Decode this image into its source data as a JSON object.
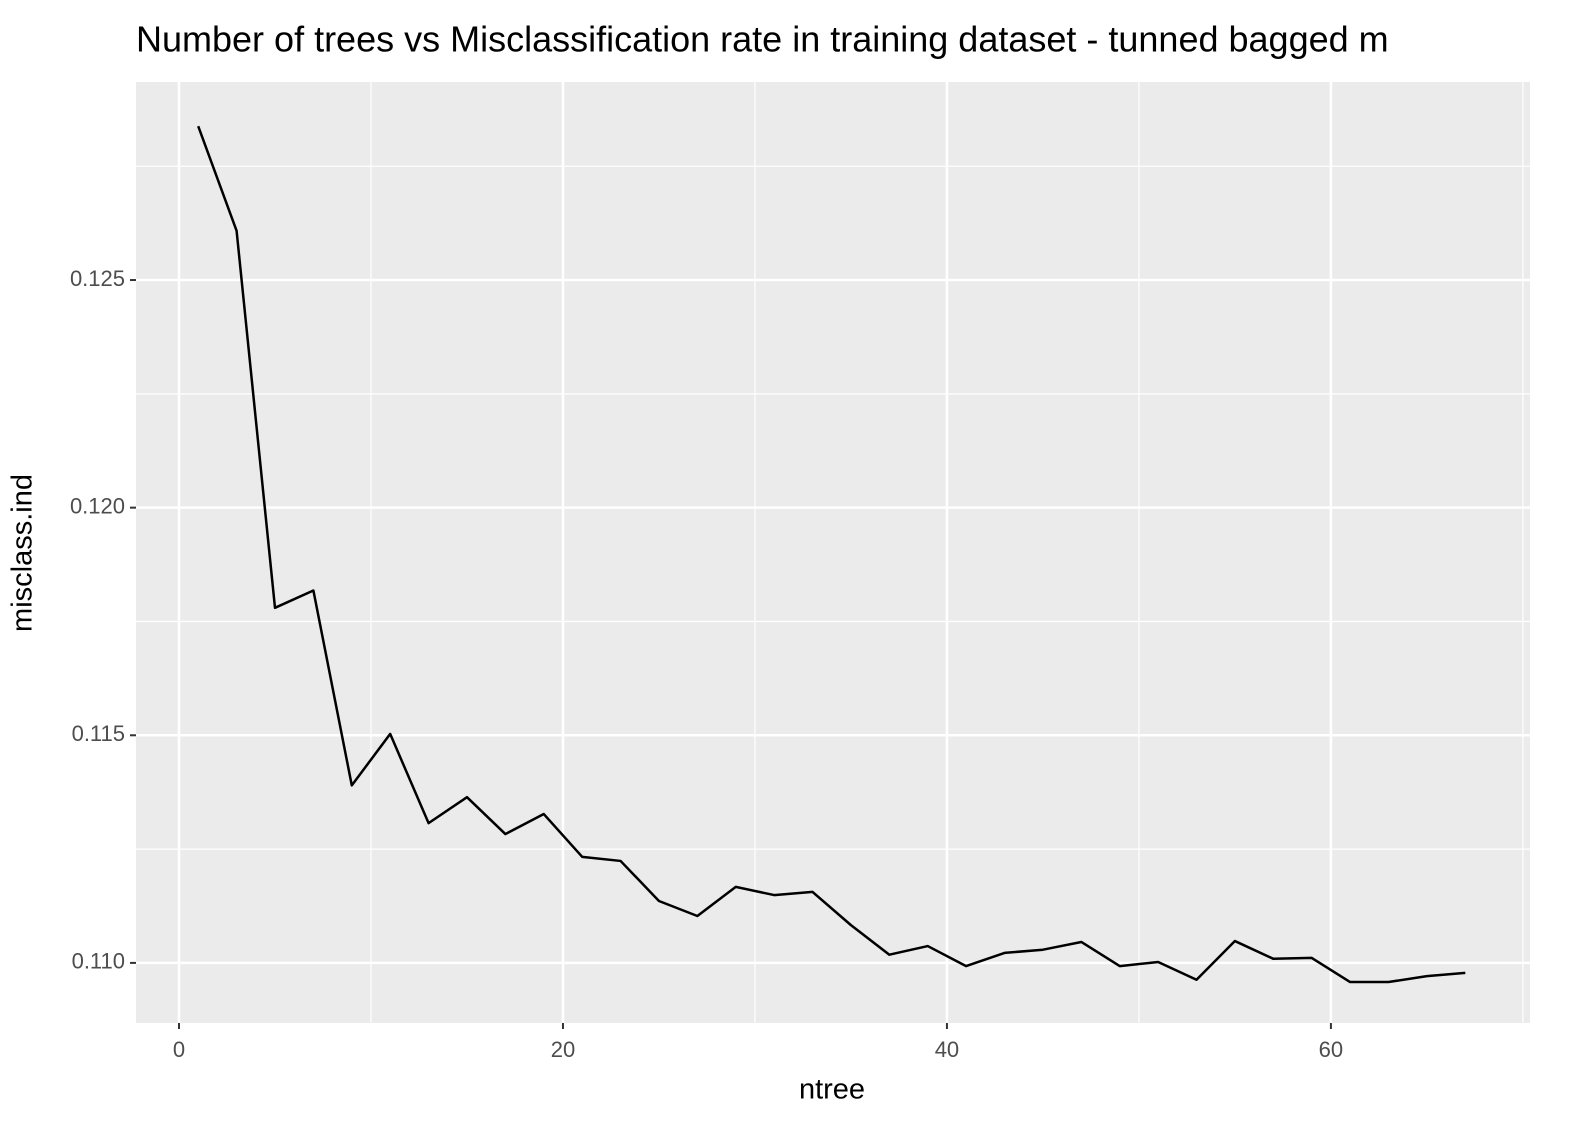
{
  "chart_data": {
    "type": "line",
    "title": "Number of trees vs Misclassification rate in training dataset - tunned bagged m",
    "x_label": "ntree",
    "y_label": "misclass.ind",
    "x": [
      1,
      3,
      5,
      7,
      9,
      11,
      13,
      15,
      17,
      19,
      21,
      23,
      25,
      27,
      29,
      31,
      33,
      35,
      37,
      39,
      41,
      43,
      45,
      47,
      49,
      51,
      53,
      55,
      57,
      59,
      61,
      63,
      65,
      67
    ],
    "series": [
      {
        "color": "#000000",
        "values": [
          0.12838,
          0.12608,
          0.1178,
          0.11818,
          0.1139,
          0.11503,
          0.11307,
          0.11364,
          0.11283,
          0.11327,
          0.11233,
          0.11224,
          0.11136,
          0.11103,
          0.11167,
          0.11149,
          0.11156,
          0.11083,
          0.11018,
          0.11037,
          0.10993,
          0.11022,
          0.11029,
          0.11046,
          0.10993,
          0.11002,
          0.10963,
          0.11048,
          0.11009,
          0.11011,
          0.10958,
          0.10958,
          0.10971,
          0.10978
        ]
      }
    ],
    "xlim": [
      -2.24,
      70.37
    ],
    "ylim": [
      0.10868,
      0.12935
    ],
    "xticks": [
      0,
      20,
      40,
      60
    ],
    "yticks": [
      {
        "value": 0.11,
        "label": "0.110"
      },
      {
        "value": 0.115,
        "label": "0.115"
      },
      {
        "value": 0.12,
        "label": "0.120"
      },
      {
        "value": 0.125,
        "label": "0.125"
      }
    ],
    "x_minor_grid": [
      10,
      30,
      50,
      70
    ],
    "y_minor_grid": [
      0.1125,
      0.1175,
      0.1225,
      0.1275
    ],
    "grid": true,
    "panel_color": "#ebebeb"
  }
}
